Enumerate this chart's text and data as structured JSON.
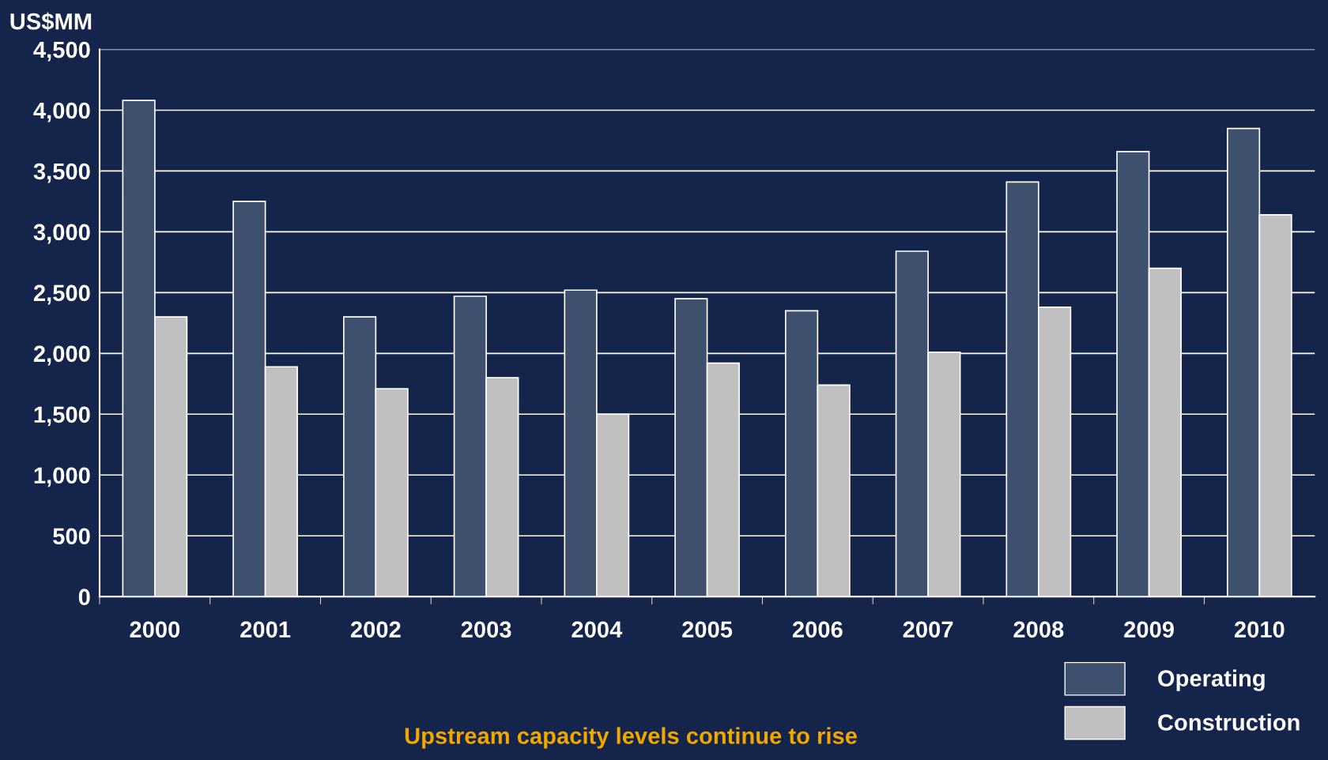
{
  "chart_data": {
    "type": "bar",
    "ylabel": "US$MM",
    "categories": [
      "2000",
      "2001",
      "2002",
      "2003",
      "2004",
      "2005",
      "2006",
      "2007",
      "2008",
      "2009",
      "2010"
    ],
    "series": [
      {
        "name": "Operating",
        "color": "#3f4f6e",
        "values": [
          4080,
          3250,
          2300,
          2470,
          2520,
          2450,
          2350,
          2840,
          3410,
          3660,
          3850
        ]
      },
      {
        "name": "Construction",
        "color": "#c0c0c0",
        "values": [
          2300,
          1890,
          1710,
          1800,
          1500,
          1920,
          1740,
          2010,
          2380,
          2700,
          3140
        ]
      }
    ],
    "ylim": [
      0,
      4500
    ],
    "yticks": [
      {
        "value": 0,
        "label": "0"
      },
      {
        "value": 500,
        "label": "500"
      },
      {
        "value": 1000,
        "label": "1,000"
      },
      {
        "value": 1500,
        "label": "1,500"
      },
      {
        "value": 2000,
        "label": "2,000"
      },
      {
        "value": 2500,
        "label": "2,500"
      },
      {
        "value": 3000,
        "label": "3,000"
      },
      {
        "value": 3500,
        "label": "3,500"
      },
      {
        "value": 4000,
        "label": "4,000"
      },
      {
        "value": 4500,
        "label": "4,500"
      }
    ],
    "grid": "y",
    "legend": "bottom right",
    "annotations": [
      "Upstream capacity levels continue to rise"
    ]
  }
}
